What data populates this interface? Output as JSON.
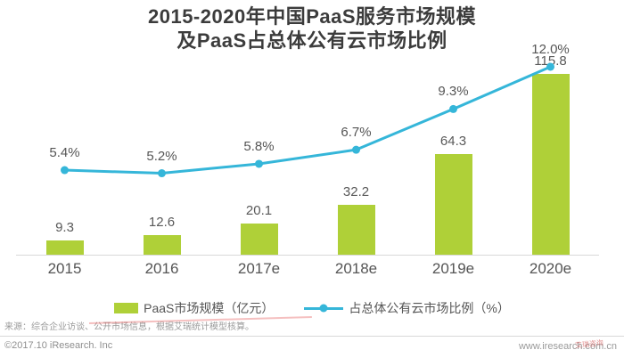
{
  "header": {
    "title_line1": "2015-2020年中国PaaS服务市场规模",
    "title_line2": "及PaaS占总体公有云市场比例"
  },
  "chart_data": {
    "type": "combo-bar-line",
    "title": "2015-2020年中国PaaS服务市场规模 及PaaS占总体公有云市场比例",
    "categories": [
      "2015",
      "2016",
      "2017e",
      "2018e",
      "2019e",
      "2020e"
    ],
    "series": [
      {
        "name": "PaaS市场规模（亿元）",
        "type": "bar",
        "values": [
          9.3,
          12.6,
          20.1,
          32.2,
          64.3,
          115.8
        ],
        "labels": [
          "9.3",
          "12.6",
          "20.1",
          "32.2",
          "64.3",
          "115.8"
        ],
        "color": "#afd038",
        "axis_max": 129
      },
      {
        "name": "占总体公有云市场比例（%）",
        "type": "line",
        "values": [
          5.4,
          5.2,
          5.8,
          6.7,
          9.3,
          12.0
        ],
        "labels": [
          "5.4%",
          "5.2%",
          "5.8%",
          "6.7%",
          "9.3%",
          "12.0%"
        ],
        "color": "#35b6d9",
        "axis_max": 12.85
      }
    ],
    "xlabel": "",
    "ylabel": "",
    "grid": false,
    "legend_position": "bottom"
  },
  "footer": {
    "source_note": "来源：综合企业访谈、公开市场信息，根据艾瑞统计模型核算。",
    "copyright": "©2017.10 iResearch. Inc",
    "website": "www.iresearch.com.cn",
    "watermark": "艾瑞咨询"
  },
  "colors": {
    "bar": "#afd038",
    "line": "#35b6d9",
    "title_text": "#3c3c3c",
    "value_text": "#595959",
    "axis_line": "#d9d9d9"
  }
}
